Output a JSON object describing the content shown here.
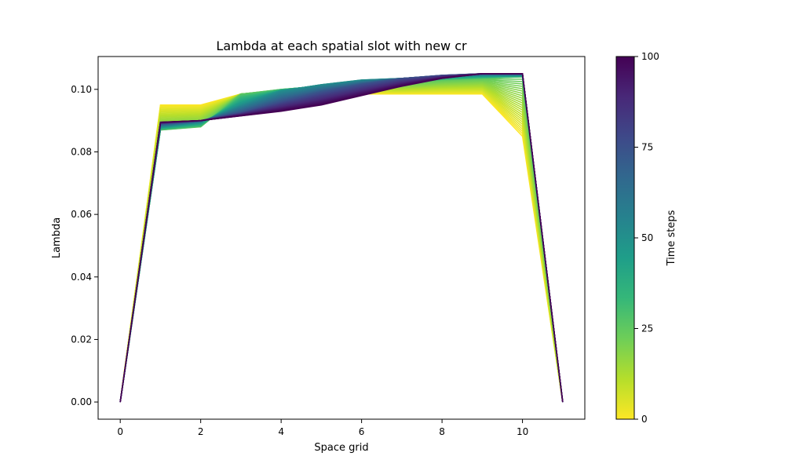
{
  "chart_data": {
    "type": "line",
    "title": "Lambda at each spatial slot with new cr",
    "xlabel": "Space grid",
    "ylabel": "Lambda",
    "xlim": [
      -0.55,
      11.55
    ],
    "ylim": [
      -0.0055,
      0.1105
    ],
    "xticks": [
      0,
      2,
      4,
      6,
      8,
      10
    ],
    "yticks": [
      0.0,
      0.02,
      0.04,
      0.06,
      0.08,
      0.1
    ],
    "ytick_labels": [
      "0.00",
      "0.02",
      "0.04",
      "0.06",
      "0.08",
      "0.10"
    ],
    "x": [
      0,
      1,
      2,
      3,
      4,
      5,
      6,
      7,
      8,
      9,
      10,
      11
    ],
    "series_count": 101,
    "series": [
      {
        "time_step": 0,
        "values": [
          0,
          0.095,
          0.095,
          0.0985,
          0.0985,
          0.0985,
          0.0985,
          0.0985,
          0.0985,
          0.0985,
          0.085,
          0
        ]
      },
      {
        "time_step": 25,
        "values": [
          0,
          0.087,
          0.088,
          0.0985,
          0.1,
          0.101,
          0.102,
          0.102,
          0.103,
          0.1035,
          0.104,
          0
        ]
      },
      {
        "time_step": 50,
        "values": [
          0,
          0.088,
          0.0895,
          0.095,
          0.0995,
          0.1015,
          0.103,
          0.1035,
          0.104,
          0.1045,
          0.1045,
          0
        ]
      },
      {
        "time_step": 75,
        "values": [
          0,
          0.089,
          0.09,
          0.0925,
          0.096,
          0.099,
          0.1015,
          0.1035,
          0.1045,
          0.105,
          0.105,
          0
        ]
      },
      {
        "time_step": 100,
        "values": [
          0,
          0.0895,
          0.09,
          0.0915,
          0.093,
          0.095,
          0.098,
          0.101,
          0.1035,
          0.105,
          0.105,
          0
        ]
      }
    ],
    "colorbar": {
      "label": "Time steps",
      "range": [
        0,
        100
      ],
      "ticks": [
        0,
        25,
        50,
        75,
        100
      ],
      "colormap": "viridis_r",
      "stops": [
        "#fde725",
        "#b5de2b",
        "#6ece58",
        "#35b779",
        "#1f9e89",
        "#26828e",
        "#31688e",
        "#3e4989",
        "#482878",
        "#440154"
      ]
    },
    "grid": false,
    "legend": "none"
  }
}
